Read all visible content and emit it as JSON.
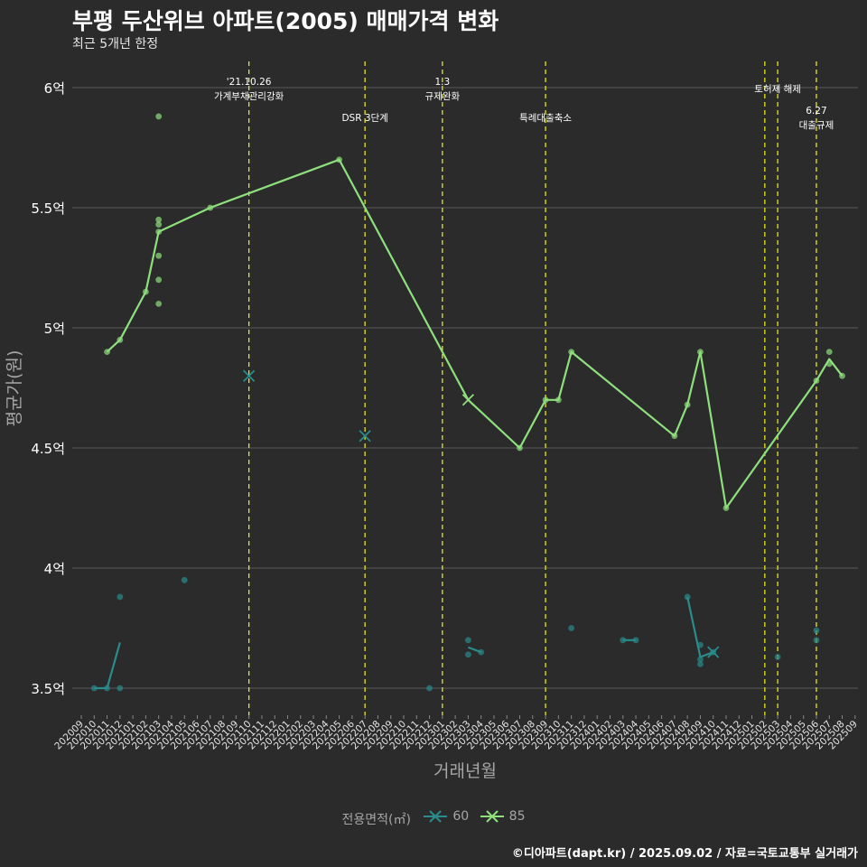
{
  "title": "부평 두산위브 아파트(2005) 매매가격 변화",
  "subtitle": "최근 5개년 한정",
  "caption": "©디아파트(dapt.kr) / 2025.09.02 / 자료=국토교통부 실거래가",
  "colors": {
    "background": "#2b2b2b",
    "grid": "#5a5a5a",
    "series60": "#2a8c8c",
    "series85": "#8ee07d",
    "event_line": "#e6e619",
    "text_muted": "#a6a6a6"
  },
  "chart_data": {
    "type": "line",
    "xlabel": "거래년월",
    "ylabel": "평균가(원)",
    "ylim": [
      3.38,
      6.12
    ],
    "yticks": [
      3.5,
      4,
      4.5,
      5,
      5.5,
      6
    ],
    "ytick_labels": [
      "3.5억",
      "4억",
      "4.5억",
      "5억",
      "5.5억",
      "6억"
    ],
    "x_months": [
      "202009",
      "202010",
      "202011",
      "202012",
      "202101",
      "202102",
      "202103",
      "202104",
      "202105",
      "202106",
      "202107",
      "202108",
      "202109",
      "202110",
      "202111",
      "202112",
      "202201",
      "202202",
      "202203",
      "202204",
      "202205",
      "202206",
      "202207",
      "202208",
      "202209",
      "202210",
      "202211",
      "202212",
      "202301",
      "202302",
      "202303",
      "202304",
      "202305",
      "202306",
      "202307",
      "202308",
      "202309",
      "202310",
      "202311",
      "202312",
      "202401",
      "202402",
      "202403",
      "202404",
      "202405",
      "202406",
      "202407",
      "202408",
      "202409",
      "202410",
      "202411",
      "202412",
      "202501",
      "202502",
      "202503",
      "202504",
      "202505",
      "202506",
      "202507",
      "202508",
      "202509"
    ],
    "legend_title": "전용면적(㎡)",
    "series": [
      {
        "name": "60",
        "line": [
          [
            [
              "202010",
              3.5
            ],
            [
              "202011",
              3.5
            ],
            [
              "202012",
              3.69
            ]
          ],
          [
            [
              "202303",
              3.67
            ],
            [
              "202304",
              3.65
            ]
          ],
          [
            [
              "202403",
              3.7
            ],
            [
              "202404",
              3.7
            ]
          ],
          [
            [
              "202408",
              3.88
            ],
            [
              "202409",
              3.63
            ],
            [
              "202410",
              3.65
            ]
          ]
        ],
        "points": [
          [
            "202010",
            3.5
          ],
          [
            "202011",
            3.5
          ],
          [
            "202012",
            3.5
          ],
          [
            "202012",
            3.88
          ],
          [
            "202105",
            3.95
          ],
          [
            "202212",
            3.5
          ],
          [
            "202303",
            3.7
          ],
          [
            "202303",
            3.64
          ],
          [
            "202304",
            3.65
          ],
          [
            "202311",
            3.75
          ],
          [
            "202403",
            3.7
          ],
          [
            "202404",
            3.7
          ],
          [
            "202408",
            3.88
          ],
          [
            "202409",
            3.68
          ],
          [
            "202409",
            3.62
          ],
          [
            "202409",
            3.6
          ],
          [
            "202410",
            3.65
          ],
          [
            "202503",
            3.63
          ],
          [
            "202506",
            3.74
          ],
          [
            "202506",
            3.7
          ]
        ],
        "x_marks": [
          [
            "202110",
            4.8
          ],
          [
            "202207",
            4.55
          ],
          [
            "202410",
            3.65
          ]
        ]
      },
      {
        "name": "85",
        "line": [
          [
            [
              "202011",
              4.9
            ],
            [
              "202012",
              4.95
            ],
            [
              "202102",
              5.15
            ],
            [
              "202103",
              5.4
            ],
            [
              "202107",
              5.5
            ],
            [
              "202205",
              5.7
            ],
            [
              "202303",
              4.7
            ],
            [
              "202307",
              4.5
            ],
            [
              "202309",
              4.7
            ],
            [
              "202310",
              4.7
            ],
            [
              "202311",
              4.9
            ],
            [
              "202407",
              4.55
            ],
            [
              "202408",
              4.68
            ],
            [
              "202409",
              4.9
            ],
            [
              "202411",
              4.25
            ],
            [
              "202506",
              4.78
            ],
            [
              "202507",
              4.87
            ],
            [
              "202508",
              4.8
            ]
          ]
        ],
        "points": [
          [
            "202011",
            4.9
          ],
          [
            "202012",
            4.95
          ],
          [
            "202102",
            5.15
          ],
          [
            "202103",
            5.88
          ],
          [
            "202103",
            5.45
          ],
          [
            "202103",
            5.43
          ],
          [
            "202103",
            5.3
          ],
          [
            "202103",
            5.2
          ],
          [
            "202103",
            5.1
          ],
          [
            "202103",
            5.4
          ],
          [
            "202107",
            5.5
          ],
          [
            "202205",
            5.7
          ],
          [
            "202307",
            4.5
          ],
          [
            "202309",
            4.7
          ],
          [
            "202310",
            4.7
          ],
          [
            "202311",
            4.9
          ],
          [
            "202407",
            4.55
          ],
          [
            "202408",
            4.68
          ],
          [
            "202409",
            4.9
          ],
          [
            "202411",
            4.25
          ],
          [
            "202506",
            4.78
          ],
          [
            "202507",
            4.9
          ],
          [
            "202507",
            4.85
          ],
          [
            "202508",
            4.8
          ]
        ],
        "x_marks": [
          [
            "202303",
            4.7
          ]
        ]
      }
    ],
    "events": [
      {
        "month": "202110",
        "lines": [
          "'21.10.26",
          "가계부채관리강화"
        ],
        "row": 1
      },
      {
        "month": "202207",
        "lines": [
          "DSR 3단계"
        ],
        "row": 3
      },
      {
        "month": "202301",
        "lines": [
          "1.3",
          "규제완화"
        ],
        "row": 1
      },
      {
        "month": "202309",
        "lines": [
          "특례대출축소"
        ],
        "row": 3
      },
      {
        "month": "202502",
        "lines": [],
        "row": 0
      },
      {
        "month": "202503",
        "lines": [
          "토허제 해제"
        ],
        "row": 2
      },
      {
        "month": "202506",
        "lines": [
          "6.27",
          "대출규제"
        ],
        "row": 4
      }
    ]
  }
}
